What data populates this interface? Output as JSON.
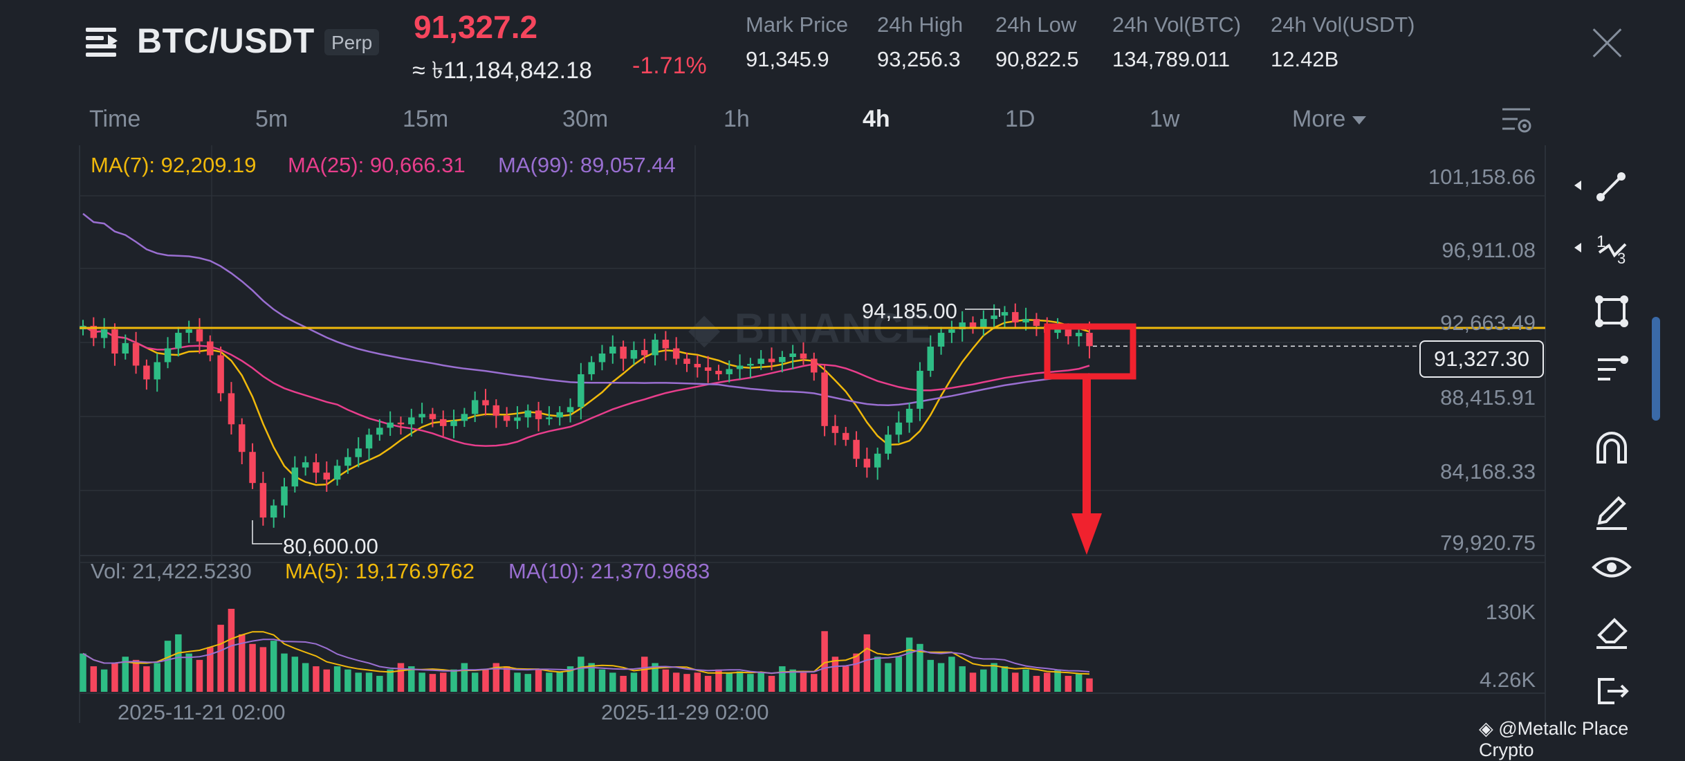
{
  "header": {
    "pair": "BTC/USDT",
    "badge": "Perp",
    "last_price": "91,327.2",
    "fiat_price": "≈ ৳11,184,842.18",
    "change": "-1.71%",
    "stats": [
      {
        "label": "Mark Price",
        "value": "91,345.9"
      },
      {
        "label": "24h High",
        "value": "93,256.3"
      },
      {
        "label": "24h Low",
        "value": "90,822.5"
      },
      {
        "label": "24h Vol(BTC)",
        "value": "134,789.011"
      },
      {
        "label": "24h Vol(USDT)",
        "value": "12.42B"
      }
    ]
  },
  "intervals": {
    "items": [
      "Time",
      "5m",
      "15m",
      "30m",
      "1h",
      "4h",
      "1D",
      "1w",
      "More"
    ],
    "active": "4h"
  },
  "legend": {
    "ma7": "MA(7): 92,209.19",
    "ma25": "MA(25): 90,666.31",
    "ma99": "MA(99): 89,057.44",
    "vol": "Vol: 21,422.5230",
    "vol_ma5": "MA(5): 19,176.9762",
    "vol_ma10": "MA(10): 21,370.9683"
  },
  "price_axis": [
    "101,158.66",
    "96,911.08",
    "92,663.49",
    "88,415.91",
    "84,168.33",
    "79,920.75"
  ],
  "volume_axis": [
    "130K",
    "4.26K"
  ],
  "current_price_tag": "91,327.30",
  "high_marker": "94,185.00",
  "low_marker": "80,600.00",
  "date_labels": [
    "2025-11-21 02:00",
    "2025-11-29 02:00"
  ],
  "watermark": "BINANCE",
  "footer": "@Metallc Place Crypto",
  "colors": {
    "up": "#2ebd85",
    "down": "#f6465d",
    "ma7": "#f0b90b",
    "ma25": "#e83e8c",
    "ma99": "#9a6fd1",
    "annotation": "#f0222e"
  },
  "toolbar_icons": [
    "trend-line-icon",
    "fibonacci-icon",
    "rectangle-icon",
    "indicator-settings-icon",
    "magnet-icon",
    "pencil-icon",
    "eye-icon",
    "eraser-icon",
    "exit-icon"
  ],
  "chart_data": {
    "type": "candlestick",
    "interval": "4h",
    "ylim": [
      78000,
      102000
    ],
    "horizontal_line": 92663.49,
    "current_price": 91327.3,
    "candles_close_sequence": [
      92500,
      91800,
      92300,
      90900,
      91500,
      90200,
      89400,
      90400,
      91200,
      92100,
      92300,
      91600,
      90800,
      88600,
      86800,
      85200,
      83400,
      81400,
      82100,
      83200,
      84300,
      84600,
      84000,
      83600,
      84400,
      84900,
      85400,
      86200,
      86600,
      86900,
      86800,
      87200,
      87400,
      87100,
      86700,
      87000,
      87400,
      88200,
      87900,
      87300,
      87000,
      87200,
      87600,
      87100,
      87200,
      87500,
      87800,
      89700,
      90400,
      90900,
      91300,
      90600,
      91100,
      90800,
      91700,
      91200,
      90600,
      90300,
      90100,
      89900,
      89700,
      90000,
      90200,
      90300,
      90600,
      90400,
      90700,
      90900,
      90600,
      89800,
      86700,
      86300,
      85900,
      84800,
      84300,
      85100,
      86200,
      86900,
      87700,
      89900,
      91300,
      92100,
      92300,
      92700,
      92400,
      92900,
      93100,
      93300,
      92700,
      92900,
      92500,
      92100,
      92300,
      91900,
      92100,
      91327
    ],
    "volume_values": [
      60,
      40,
      35,
      45,
      55,
      50,
      40,
      45,
      80,
      90,
      60,
      50,
      70,
      105,
      130,
      90,
      75,
      70,
      80,
      60,
      55,
      45,
      40,
      35,
      40,
      35,
      30,
      30,
      25,
      35,
      45,
      40,
      30,
      28,
      30,
      35,
      45,
      30,
      35,
      45,
      40,
      30,
      28,
      35,
      30,
      32,
      40,
      55,
      45,
      35,
      30,
      25,
      30,
      55,
      45,
      35,
      30,
      28,
      30,
      25,
      35,
      30,
      32,
      28,
      30,
      25,
      40,
      35,
      30,
      28,
      95,
      55,
      40,
      60,
      90,
      55,
      45,
      55,
      85,
      75,
      50,
      45,
      55,
      40,
      30,
      35,
      45,
      40,
      30,
      35,
      25,
      30,
      35,
      25,
      28,
      21
    ]
  }
}
